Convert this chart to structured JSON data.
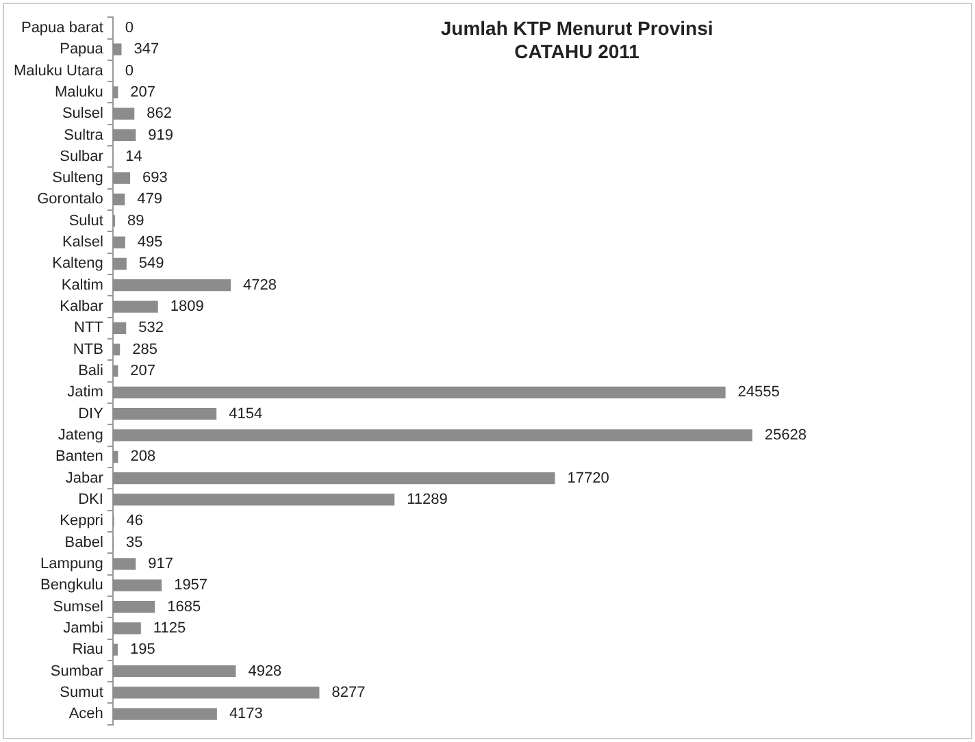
{
  "chart_data": {
    "type": "bar",
    "orientation": "horizontal",
    "title": [
      "Jumlah KTP Menurut Provinsi",
      "CATAHU 2011"
    ],
    "categories": [
      "Papua barat",
      "Papua",
      "Maluku Utara",
      "Maluku",
      "Sulsel",
      "Sultra",
      "Sulbar",
      "Sulteng",
      "Gorontalo",
      "Sulut",
      "Kalsel",
      "Kalteng",
      "Kaltim",
      "Kalbar",
      "NTT",
      "NTB",
      "Bali",
      "Jatim",
      "DIY",
      "Jateng",
      "Banten",
      "Jabar",
      "DKI",
      "Keppri",
      "Babel",
      "Lampung",
      "Bengkulu",
      "Sumsel",
      "Jambi",
      "Riau",
      "Sumbar",
      "Sumut",
      "Aceh"
    ],
    "values": [
      0,
      347,
      0,
      207,
      862,
      919,
      14,
      693,
      479,
      89,
      495,
      549,
      4728,
      1809,
      532,
      285,
      207,
      24555,
      4154,
      25628,
      208,
      17720,
      11289,
      46,
      35,
      917,
      1957,
      1685,
      1125,
      195,
      4928,
      8277,
      4173
    ],
    "color": "#8c8c8c",
    "tick_labels": "y",
    "data_labels": true
  }
}
